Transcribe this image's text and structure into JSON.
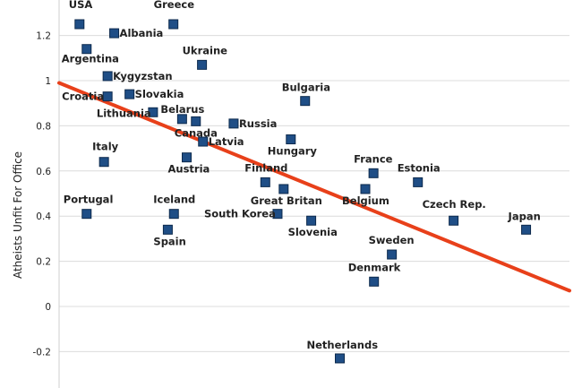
{
  "chart_data": {
    "type": "scatter",
    "title": "",
    "xlabel": "",
    "ylabel": "Atheists Unfit For Office",
    "ylim": [
      -0.35,
      1.35
    ],
    "y_ticks": [
      "1.2",
      "1",
      "0.8",
      "0.6",
      "0.4",
      "0.2",
      "0",
      "-0.2"
    ],
    "y_tick_values": [
      1.2,
      1.0,
      0.8,
      0.6,
      0.4,
      0.2,
      0.0,
      -0.2
    ],
    "grid": "horizontal",
    "marker": "square",
    "marker_color": "#1f4e86",
    "trend_line_color": "#e8401a",
    "trend_line": {
      "x": [
        0,
        1
      ],
      "y": [
        0.99,
        0.07
      ]
    },
    "points": [
      {
        "label": "USA",
        "x": 0.04,
        "y": 1.25
      },
      {
        "label": "Greece",
        "x": 0.224,
        "y": 1.25
      },
      {
        "label": "Albania",
        "x": 0.108,
        "y": 1.21
      },
      {
        "label": "Argentina",
        "x": 0.054,
        "y": 1.14
      },
      {
        "label": "Ukraine",
        "x": 0.28,
        "y": 1.07
      },
      {
        "label": "Kygyzstan",
        "x": 0.095,
        "y": 1.02
      },
      {
        "label": "Croatia",
        "x": 0.095,
        "y": 0.93
      },
      {
        "label": "Slovakia",
        "x": 0.138,
        "y": 0.94
      },
      {
        "label": "Bulgaria",
        "x": 0.482,
        "y": 0.91
      },
      {
        "label": "Lithuania",
        "x": 0.184,
        "y": 0.86
      },
      {
        "label": "Belarus",
        "x": 0.241,
        "y": 0.83
      },
      {
        "label": "Canada",
        "x": 0.268,
        "y": 0.82
      },
      {
        "label": "Russia",
        "x": 0.342,
        "y": 0.81
      },
      {
        "label": "Latvia",
        "x": 0.282,
        "y": 0.73
      },
      {
        "label": "Hungary",
        "x": 0.454,
        "y": 0.74
      },
      {
        "label": "Italy",
        "x": 0.088,
        "y": 0.64
      },
      {
        "label": "Austria",
        "x": 0.25,
        "y": 0.66
      },
      {
        "label": "France",
        "x": 0.616,
        "y": 0.59
      },
      {
        "label": "Finland",
        "x": 0.404,
        "y": 0.55
      },
      {
        "label": "Estonia",
        "x": 0.703,
        "y": 0.55
      },
      {
        "label": "Great Britan",
        "x": 0.44,
        "y": 0.52
      },
      {
        "label": "Belgium",
        "x": 0.6,
        "y": 0.52
      },
      {
        "label": "Portugal",
        "x": 0.054,
        "y": 0.41
      },
      {
        "label": "Iceland",
        "x": 0.225,
        "y": 0.41
      },
      {
        "label": "South Korea",
        "x": 0.428,
        "y": 0.41
      },
      {
        "label": "Czech Rep.",
        "x": 0.773,
        "y": 0.38
      },
      {
        "label": "Slovenia",
        "x": 0.494,
        "y": 0.38
      },
      {
        "label": "Spain",
        "x": 0.213,
        "y": 0.34
      },
      {
        "label": "Japan",
        "x": 0.915,
        "y": 0.34
      },
      {
        "label": "Sweden",
        "x": 0.652,
        "y": 0.23
      },
      {
        "label": "Denmark",
        "x": 0.617,
        "y": 0.11
      },
      {
        "label": "Netherlands",
        "x": 0.55,
        "y": -0.23
      }
    ]
  }
}
